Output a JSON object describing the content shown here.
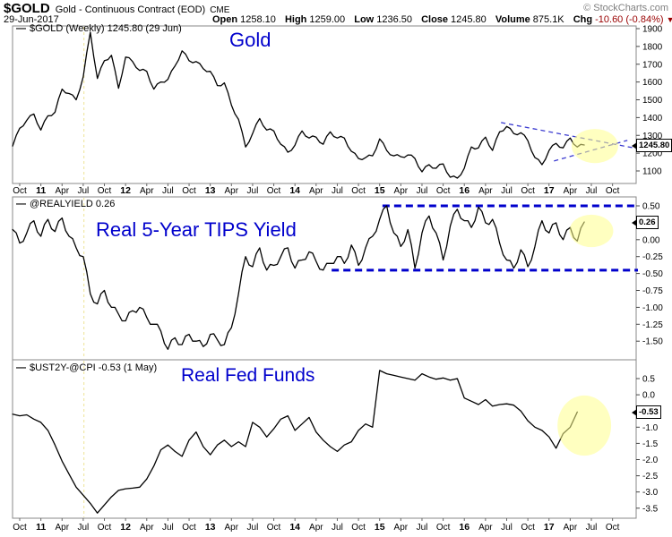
{
  "header": {
    "symbol": "$GOLD",
    "name": "Gold - Continuous Contract (EOD)",
    "exchange": "CME",
    "credit": "© StockCharts.com",
    "date": "29-Jun-2017",
    "quote": {
      "open_label": "Open",
      "open": "1258.10",
      "high_label": "High",
      "high": "1259.00",
      "low_label": "Low",
      "low": "1236.50",
      "close_label": "Close",
      "close": "1245.80",
      "volume_label": "Volume",
      "volume": "875.1K",
      "chg_label": "Chg",
      "chg": "-10.60 (-0.84%)",
      "chg_arrow": "▼",
      "chg_color": "#990000"
    }
  },
  "colors": {
    "line": "#000000",
    "annotation_blue": "#0000cc",
    "dashed_blue": "#3b3bd0",
    "highlight_yellow": "#ffff8c",
    "event_vline_yellow": "#ece394",
    "border": "#888888"
  },
  "x_axis": {
    "ticks": [
      {
        "t": "Oct",
        "b": 0
      },
      {
        "t": "11",
        "b": 1
      },
      {
        "t": "Apr",
        "b": 0
      },
      {
        "t": "Jul",
        "b": 0
      },
      {
        "t": "Oct",
        "b": 0
      },
      {
        "t": "12",
        "b": 1
      },
      {
        "t": "Apr",
        "b": 0
      },
      {
        "t": "Jul",
        "b": 0
      },
      {
        "t": "Oct",
        "b": 0
      },
      {
        "t": "13",
        "b": 1
      },
      {
        "t": "Apr",
        "b": 0
      },
      {
        "t": "Jul",
        "b": 0
      },
      {
        "t": "Oct",
        "b": 0
      },
      {
        "t": "14",
        "b": 1
      },
      {
        "t": "Apr",
        "b": 0
      },
      {
        "t": "Jul",
        "b": 0
      },
      {
        "t": "Oct",
        "b": 0
      },
      {
        "t": "15",
        "b": 1
      },
      {
        "t": "Apr",
        "b": 0
      },
      {
        "t": "Jul",
        "b": 0
      },
      {
        "t": "Oct",
        "b": 0
      },
      {
        "t": "16",
        "b": 1
      },
      {
        "t": "Apr",
        "b": 0
      },
      {
        "t": "Jul",
        "b": 0
      },
      {
        "t": "Oct",
        "b": 0
      },
      {
        "t": "17",
        "b": 1
      },
      {
        "t": "Apr",
        "b": 0
      },
      {
        "t": "Jul",
        "b": 0
      },
      {
        "t": "Oct",
        "b": 0
      }
    ],
    "range": "Oct 2010 - Oct 2017",
    "event_vline_month": 10.1
  },
  "chart_data": [
    {
      "type": "line",
      "name": "$GOLD",
      "legend": "$GOLD (Weekly) 1245.80 (29 Jun)",
      "annotation": "Gold",
      "price_tag": "1245.80",
      "last_value": 1245.8,
      "ylim": [
        1030,
        1915
      ],
      "y_ticks": [
        {
          "v": 1900,
          "t": "1900"
        },
        {
          "v": 1800,
          "t": "1800"
        },
        {
          "v": 1700,
          "t": "1700"
        },
        {
          "v": 1600,
          "t": "1600"
        },
        {
          "v": 1500,
          "t": "1500"
        },
        {
          "v": 1400,
          "t": "1400"
        },
        {
          "v": 1300,
          "t": "1300"
        },
        {
          "v": 1200,
          "t": "1200"
        },
        {
          "v": 1100,
          "t": "1100"
        }
      ],
      "series": {
        "start_month": 0,
        "jitter": 9,
        "values": [
          1240,
          1340,
          1385,
          1420,
          1330,
          1410,
          1430,
          1560,
          1535,
          1500,
          1630,
          1880,
          1620,
          1720,
          1750,
          1565,
          1740,
          1715,
          1665,
          1660,
          1560,
          1600,
          1615,
          1690,
          1775,
          1720,
          1715,
          1675,
          1660,
          1580,
          1595,
          1470,
          1390,
          1235,
          1310,
          1395,
          1330,
          1325,
          1250,
          1205,
          1245,
          1325,
          1285,
          1290,
          1250,
          1320,
          1285,
          1285,
          1210,
          1170,
          1175,
          1185,
          1280,
          1215,
          1185,
          1180,
          1190,
          1170,
          1095,
          1135,
          1115,
          1140,
          1065,
          1060,
          1115,
          1235,
          1230,
          1290,
          1215,
          1320,
          1350,
          1310,
          1315,
          1270,
          1175,
          1135,
          1215,
          1255,
          1230,
          1285,
          1235,
          1246
        ]
      },
      "trendlines": [
        {
          "from": {
            "m": 69.2,
            "v": 1372
          },
          "to": {
            "m": 88.6,
            "v": 1225
          }
        },
        {
          "from": {
            "m": 76.7,
            "v": 1156
          },
          "to": {
            "m": 87.1,
            "v": 1272
          }
        }
      ],
      "highlight_ellipse": {
        "m": 82.5,
        "v": 1240,
        "rm": 3.3,
        "rv": 96
      }
    },
    {
      "type": "line",
      "name": "@REALYIELD",
      "legend": "@REALYIELD 0.26",
      "annotation": "Real 5-Year TIPS Yield",
      "price_tag": "0.26",
      "last_value": 0.26,
      "ylim": [
        -1.78,
        0.63
      ],
      "y_ticks": [
        {
          "v": 0.5,
          "t": "0.50"
        },
        {
          "v": 0.0,
          "t": "0.00"
        },
        {
          "v": -0.25,
          "t": "-0.25"
        },
        {
          "v": -0.5,
          "t": "-0.50"
        },
        {
          "v": -0.75,
          "t": "-0.75"
        },
        {
          "v": -1.0,
          "t": "-1.00"
        },
        {
          "v": -1.25,
          "t": "-1.25"
        },
        {
          "v": -1.5,
          "t": "-1.50"
        }
      ],
      "series": {
        "start_month": 0,
        "jitter": 0.05,
        "values": [
          0.15,
          -0.05,
          0.1,
          0.28,
          0.05,
          0.3,
          0.12,
          0.32,
          0.05,
          -0.12,
          -0.25,
          -0.8,
          -0.95,
          -0.75,
          -1.0,
          -1.1,
          -1.2,
          -1.05,
          -1.0,
          -1.15,
          -1.25,
          -1.35,
          -1.62,
          -1.45,
          -1.55,
          -1.4,
          -1.5,
          -1.58,
          -1.4,
          -1.48,
          -1.55,
          -1.3,
          -0.8,
          -0.25,
          -0.4,
          -0.12,
          -0.45,
          -0.38,
          -0.25,
          -0.12,
          -0.42,
          -0.3,
          -0.18,
          -0.32,
          -0.45,
          -0.35,
          -0.25,
          -0.35,
          -0.08,
          -0.38,
          -0.12,
          0.05,
          0.3,
          0.5,
          0.1,
          -0.1,
          0.15,
          -0.42,
          0.1,
          0.35,
          0.1,
          -0.3,
          0.2,
          0.45,
          0.28,
          0.18,
          0.48,
          0.25,
          0.3,
          -0.05,
          -0.3,
          -0.42,
          -0.15,
          -0.4,
          -0.1,
          0.28,
          0.1,
          0.25,
          0.0,
          0.18,
          -0.02,
          0.26
        ]
      },
      "hlines": [
        {
          "v": 0.5,
          "from_m": 52.4
        },
        {
          "v": -0.45,
          "from_m": 45.2
        }
      ],
      "highlight_ellipse": {
        "m": 82.0,
        "v": 0.13,
        "rm": 3.1,
        "rv": 0.24
      }
    },
    {
      "type": "line",
      "name": "$UST2Y-@CPI",
      "legend": "$UST2Y-@CPI -0.53 (1 May)",
      "annotation": "Real Fed Funds",
      "price_tag": "-0.53",
      "last_value": -0.53,
      "ylim": [
        -3.85,
        0.95
      ],
      "y_ticks": [
        {
          "v": 0.5,
          "t": "0.5"
        },
        {
          "v": 0.0,
          "t": "0.0"
        },
        {
          "v": -1.0,
          "t": "-1.0"
        },
        {
          "v": -1.5,
          "t": "-1.5"
        },
        {
          "v": -2.0,
          "t": "-2.0"
        },
        {
          "v": -2.5,
          "t": "-2.5"
        },
        {
          "v": -3.0,
          "t": "-3.0"
        },
        {
          "v": -3.5,
          "t": "-3.5"
        }
      ],
      "series": {
        "start_month": 0,
        "jitter": 0,
        "values": [
          -0.6,
          -0.65,
          -0.62,
          -0.75,
          -0.85,
          -1.1,
          -1.55,
          -2.05,
          -2.45,
          -2.85,
          -3.1,
          -3.35,
          -3.65,
          -3.4,
          -3.15,
          -2.95,
          -2.9,
          -2.88,
          -2.85,
          -2.6,
          -2.2,
          -1.7,
          -1.55,
          -1.75,
          -1.9,
          -1.4,
          -1.15,
          -1.6,
          -1.85,
          -1.55,
          -1.4,
          -1.6,
          -1.45,
          -1.6,
          -0.85,
          -1.0,
          -1.3,
          -1.05,
          -0.75,
          -0.65,
          -1.1,
          -0.9,
          -0.7,
          -1.15,
          -1.4,
          -1.6,
          -1.75,
          -1.55,
          -1.45,
          -1.1,
          -0.9,
          -1.0,
          0.75,
          0.65,
          0.6,
          0.55,
          0.5,
          0.45,
          0.65,
          0.55,
          0.48,
          0.52,
          0.45,
          0.5,
          -0.1,
          -0.2,
          -0.3,
          -0.15,
          -0.35,
          -0.3,
          -0.28,
          -0.32,
          -0.5,
          -0.8,
          -1.0,
          -1.1,
          -1.3,
          -1.65,
          -1.2,
          -1.0,
          -0.53
        ]
      },
      "highlight_ellipse": {
        "m": 81.0,
        "v": -0.95,
        "rm": 3.8,
        "rv": 0.93
      }
    }
  ]
}
